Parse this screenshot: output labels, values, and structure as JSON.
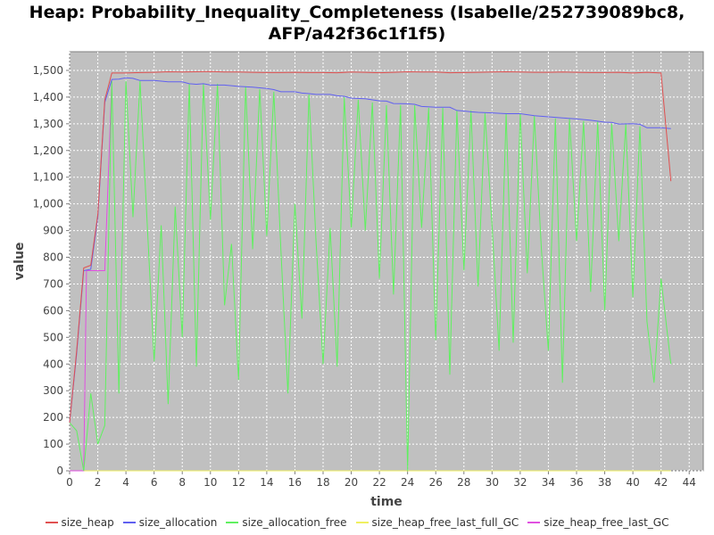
{
  "chart_data": {
    "type": "line",
    "title_line1": "Heap: Probability_Inequality_Completeness (Isabelle/252739089bc8,",
    "title_line2": "AFP/a42f36c1f1f5)",
    "xlabel": "time",
    "ylabel": "value",
    "xlim": [
      0,
      45
    ],
    "ylim": [
      0,
      1570
    ],
    "xticks": [
      0,
      2,
      4,
      6,
      8,
      10,
      12,
      14,
      16,
      18,
      20,
      22,
      24,
      26,
      28,
      30,
      32,
      34,
      36,
      38,
      40,
      42,
      44
    ],
    "yticks": [
      0,
      100,
      200,
      300,
      400,
      500,
      600,
      700,
      800,
      900,
      1000,
      1100,
      1200,
      1300,
      1400,
      1500
    ],
    "ytick_labels": [
      "0",
      "100",
      "200",
      "300",
      "400",
      "500",
      "600",
      "700",
      "800",
      "900",
      "1,000",
      "1,100",
      "1,200",
      "1,300",
      "1,400",
      "1,500"
    ],
    "grid": true,
    "legend_position": "bottom",
    "background": "#c0c0c0",
    "series": [
      {
        "name": "size_heap",
        "color": "#e05050",
        "points": [
          [
            0,
            180
          ],
          [
            0.5,
            450
          ],
          [
            1,
            760
          ],
          [
            1.5,
            770
          ],
          [
            2,
            960
          ],
          [
            2.5,
            1390
          ],
          [
            3,
            1490
          ],
          [
            4,
            1490
          ],
          [
            5,
            1492
          ],
          [
            6,
            1493
          ],
          [
            7,
            1495
          ],
          [
            8,
            1494
          ],
          [
            9,
            1495
          ],
          [
            10,
            1496
          ],
          [
            11,
            1494
          ],
          [
            12,
            1494
          ],
          [
            13,
            1493
          ],
          [
            14,
            1492
          ],
          [
            15,
            1492
          ],
          [
            16,
            1493
          ],
          [
            17,
            1492
          ],
          [
            18,
            1492
          ],
          [
            19,
            1491
          ],
          [
            20,
            1494
          ],
          [
            21,
            1493
          ],
          [
            22,
            1491
          ],
          [
            23,
            1493
          ],
          [
            24,
            1495
          ],
          [
            25,
            1494
          ],
          [
            26,
            1494
          ],
          [
            27,
            1491
          ],
          [
            28,
            1492
          ],
          [
            29,
            1493
          ],
          [
            30,
            1494
          ],
          [
            31,
            1495
          ],
          [
            32,
            1494
          ],
          [
            33,
            1493
          ],
          [
            34,
            1493
          ],
          [
            35,
            1494
          ],
          [
            36,
            1493
          ],
          [
            37,
            1492
          ],
          [
            38,
            1492
          ],
          [
            39,
            1493
          ],
          [
            40,
            1490
          ],
          [
            41,
            1493
          ],
          [
            42,
            1490
          ],
          [
            42.7,
            1085
          ]
        ]
      },
      {
        "name": "size_allocation",
        "color": "#6060f0",
        "points": [
          [
            0,
            180
          ],
          [
            0.5,
            440
          ],
          [
            1,
            750
          ],
          [
            1.5,
            755
          ],
          [
            2,
            950
          ],
          [
            2.5,
            1380
          ],
          [
            3,
            1466
          ],
          [
            3.5,
            1467
          ],
          [
            4,
            1472
          ],
          [
            4.5,
            1470
          ],
          [
            5,
            1462
          ],
          [
            6,
            1462
          ],
          [
            7,
            1457
          ],
          [
            8,
            1457
          ],
          [
            8.5,
            1450
          ],
          [
            9,
            1448
          ],
          [
            9.5,
            1450
          ],
          [
            10,
            1445
          ],
          [
            11,
            1445
          ],
          [
            12,
            1440
          ],
          [
            13,
            1437
          ],
          [
            14,
            1432
          ],
          [
            14.5,
            1428
          ],
          [
            15,
            1420
          ],
          [
            16,
            1420
          ],
          [
            16.5,
            1415
          ],
          [
            17,
            1413
          ],
          [
            17.5,
            1410
          ],
          [
            18.5,
            1410
          ],
          [
            19,
            1405
          ],
          [
            19.5,
            1403
          ],
          [
            20,
            1396
          ],
          [
            21,
            1394
          ],
          [
            22,
            1386
          ],
          [
            22.5,
            1385
          ],
          [
            23,
            1376
          ],
          [
            24,
            1375
          ],
          [
            24.5,
            1373
          ],
          [
            25,
            1365
          ],
          [
            26,
            1362
          ],
          [
            27,
            1362
          ],
          [
            27.5,
            1350
          ],
          [
            28,
            1348
          ],
          [
            28.5,
            1345
          ],
          [
            29,
            1343
          ],
          [
            30,
            1341
          ],
          [
            31,
            1338
          ],
          [
            32,
            1338
          ],
          [
            33,
            1330
          ],
          [
            34,
            1326
          ],
          [
            35,
            1322
          ],
          [
            36,
            1318
          ],
          [
            37,
            1313
          ],
          [
            38,
            1306
          ],
          [
            38.5,
            1305
          ],
          [
            39,
            1299
          ],
          [
            40,
            1300
          ],
          [
            40.5,
            1298
          ],
          [
            41,
            1285
          ],
          [
            42,
            1285
          ],
          [
            42.7,
            1282
          ]
        ]
      },
      {
        "name": "size_allocation_free",
        "color": "#60f060",
        "points": [
          [
            0,
            180
          ],
          [
            0.5,
            150
          ],
          [
            1,
            0
          ],
          [
            1.5,
            290
          ],
          [
            2,
            100
          ],
          [
            2.5,
            170
          ],
          [
            3,
            1460
          ],
          [
            3.5,
            290
          ],
          [
            4,
            1460
          ],
          [
            4.5,
            950
          ],
          [
            5,
            1460
          ],
          [
            6,
            410
          ],
          [
            6.5,
            920
          ],
          [
            7,
            250
          ],
          [
            7.5,
            990
          ],
          [
            8,
            500
          ],
          [
            8.5,
            1450
          ],
          [
            9,
            390
          ],
          [
            9.5,
            1450
          ],
          [
            10,
            940
          ],
          [
            10.5,
            1450
          ],
          [
            11,
            620
          ],
          [
            11.5,
            850
          ],
          [
            12,
            340
          ],
          [
            12.5,
            1440
          ],
          [
            13,
            830
          ],
          [
            13.5,
            1430
          ],
          [
            14,
            880
          ],
          [
            14.5,
            1420
          ],
          [
            15,
            830
          ],
          [
            15.5,
            290
          ],
          [
            16,
            1000
          ],
          [
            16.5,
            570
          ],
          [
            17,
            1410
          ],
          [
            17.5,
            860
          ],
          [
            18,
            400
          ],
          [
            18.5,
            910
          ],
          [
            19,
            390
          ],
          [
            19.5,
            1400
          ],
          [
            20,
            910
          ],
          [
            20.5,
            1390
          ],
          [
            21,
            900
          ],
          [
            21.5,
            1380
          ],
          [
            22,
            720
          ],
          [
            22.5,
            1370
          ],
          [
            23,
            660
          ],
          [
            23.5,
            1370
          ],
          [
            24,
            0
          ],
          [
            24.5,
            1370
          ],
          [
            25,
            910
          ],
          [
            25.5,
            1360
          ],
          [
            26,
            490
          ],
          [
            26.5,
            1360
          ],
          [
            27,
            360
          ],
          [
            27.5,
            1350
          ],
          [
            28,
            750
          ],
          [
            28.5,
            1350
          ],
          [
            29,
            690
          ],
          [
            29.5,
            1340
          ],
          [
            30,
            920
          ],
          [
            30.5,
            450
          ],
          [
            31,
            1340
          ],
          [
            31.5,
            480
          ],
          [
            32,
            1340
          ],
          [
            32.5,
            740
          ],
          [
            33,
            1330
          ],
          [
            33.5,
            830
          ],
          [
            34,
            450
          ],
          [
            34.5,
            1320
          ],
          [
            35,
            330
          ],
          [
            35.5,
            1320
          ],
          [
            36,
            860
          ],
          [
            36.5,
            1310
          ],
          [
            37,
            670
          ],
          [
            37.5,
            1310
          ],
          [
            38,
            600
          ],
          [
            38.5,
            1300
          ],
          [
            39,
            860
          ],
          [
            39.5,
            1300
          ],
          [
            40,
            650
          ],
          [
            40.5,
            1290
          ],
          [
            41,
            560
          ],
          [
            41.5,
            330
          ],
          [
            42,
            720
          ],
          [
            42.7,
            400
          ]
        ]
      },
      {
        "name": "size_heap_free_last_full_GC",
        "color": "#f0f060",
        "points": [
          [
            0,
            0
          ],
          [
            42.7,
            0
          ]
        ]
      },
      {
        "name": "size_heap_free_last_GC",
        "color": "#e050e0",
        "points": [
          [
            0,
            0
          ],
          [
            1,
            0
          ],
          [
            1.2,
            750
          ],
          [
            2.5,
            750
          ],
          [
            3,
            1460
          ]
        ]
      }
    ]
  }
}
